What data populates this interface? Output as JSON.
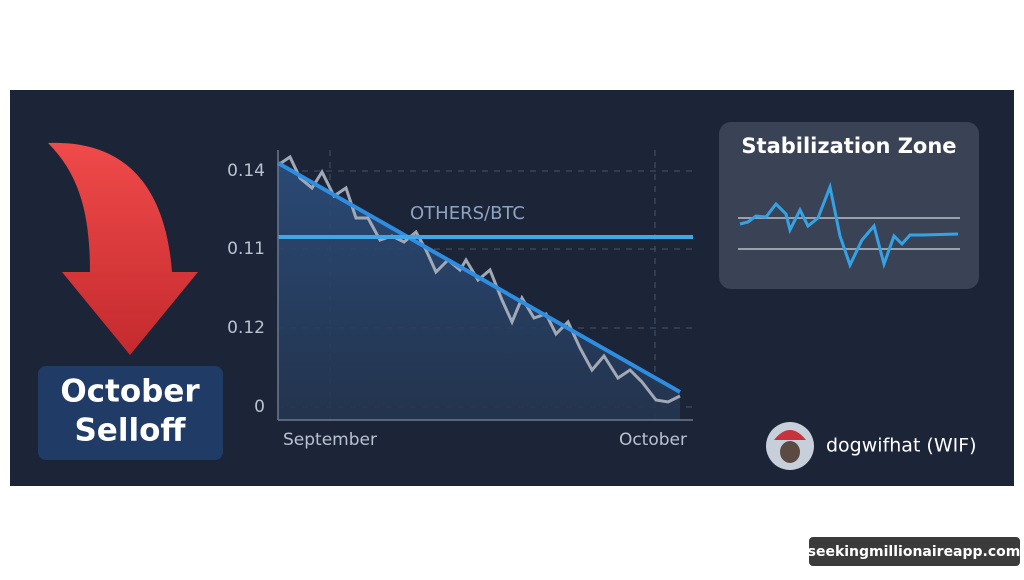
{
  "badge": {
    "title": "October Selloff"
  },
  "chart": {
    "series_label": "OTHERS/BTC",
    "y_labels": [
      "0.14",
      "0.11",
      "0.12",
      "0"
    ],
    "x_labels": [
      "September",
      "October"
    ]
  },
  "stabilization": {
    "title": "Stabilization Zone"
  },
  "coin": {
    "name": "dogwifhat (WIF)"
  },
  "watermark": "seekingmillionaireapp.com"
}
